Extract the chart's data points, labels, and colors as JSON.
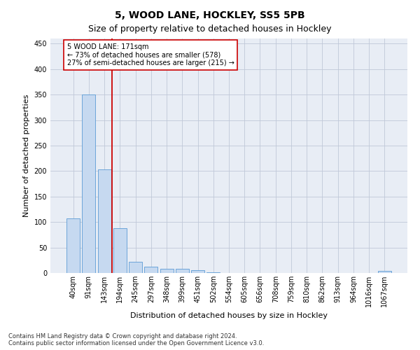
{
  "title": "5, WOOD LANE, HOCKLEY, SS5 5PB",
  "subtitle": "Size of property relative to detached houses in Hockley",
  "xlabel": "Distribution of detached houses by size in Hockley",
  "ylabel": "Number of detached properties",
  "categories": [
    "40sqm",
    "91sqm",
    "143sqm",
    "194sqm",
    "245sqm",
    "297sqm",
    "348sqm",
    "399sqm",
    "451sqm",
    "502sqm",
    "554sqm",
    "605sqm",
    "656sqm",
    "708sqm",
    "759sqm",
    "810sqm",
    "862sqm",
    "913sqm",
    "964sqm",
    "1016sqm",
    "1067sqm"
  ],
  "values": [
    107,
    350,
    203,
    88,
    22,
    13,
    8,
    8,
    5,
    2,
    0,
    0,
    0,
    0,
    0,
    0,
    0,
    0,
    0,
    0,
    4
  ],
  "bar_color": "#c6d9f0",
  "bar_edge_color": "#5b9bd5",
  "red_line_index": 2,
  "red_line_color": "#cc0000",
  "annotation_text": "5 WOOD LANE: 171sqm\n← 73% of detached houses are smaller (578)\n27% of semi-detached houses are larger (215) →",
  "annotation_box_color": "#ffffff",
  "annotation_box_edge": "#cc0000",
  "ylim": [
    0,
    460
  ],
  "yticks": [
    0,
    50,
    100,
    150,
    200,
    250,
    300,
    350,
    400,
    450
  ],
  "footer": "Contains HM Land Registry data © Crown copyright and database right 2024.\nContains public sector information licensed under the Open Government Licence v3.0.",
  "background_color": "#ffffff",
  "plot_bg_color": "#e8edf5",
  "grid_color": "#c0c8d8",
  "title_fontsize": 10,
  "subtitle_fontsize": 9,
  "ylabel_fontsize": 8,
  "xlabel_fontsize": 8,
  "tick_fontsize": 7,
  "footer_fontsize": 6,
  "annotation_fontsize": 7
}
